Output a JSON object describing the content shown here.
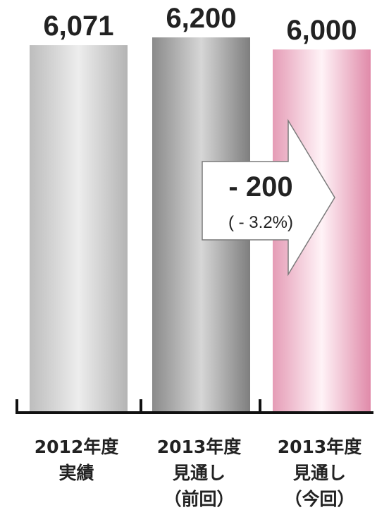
{
  "chart_data": {
    "type": "bar",
    "categories": [
      [
        "2012年度",
        "実績"
      ],
      [
        "2013年度",
        "見通し",
        "（前回）"
      ],
      [
        "2013年度",
        "見通し",
        "（今回）"
      ]
    ],
    "values": [
      6071,
      6200,
      6000
    ],
    "value_labels": [
      "6,071",
      "6,200",
      "6,000"
    ],
    "bar_colors": [
      "#cfcfcf",
      "#9e9e9e",
      "#f5d3df"
    ],
    "annotation": {
      "main": "- 200",
      "sub": "( - 3.2%)"
    },
    "ylim": [
      0,
      6400
    ],
    "grid": false,
    "legend": "none"
  }
}
